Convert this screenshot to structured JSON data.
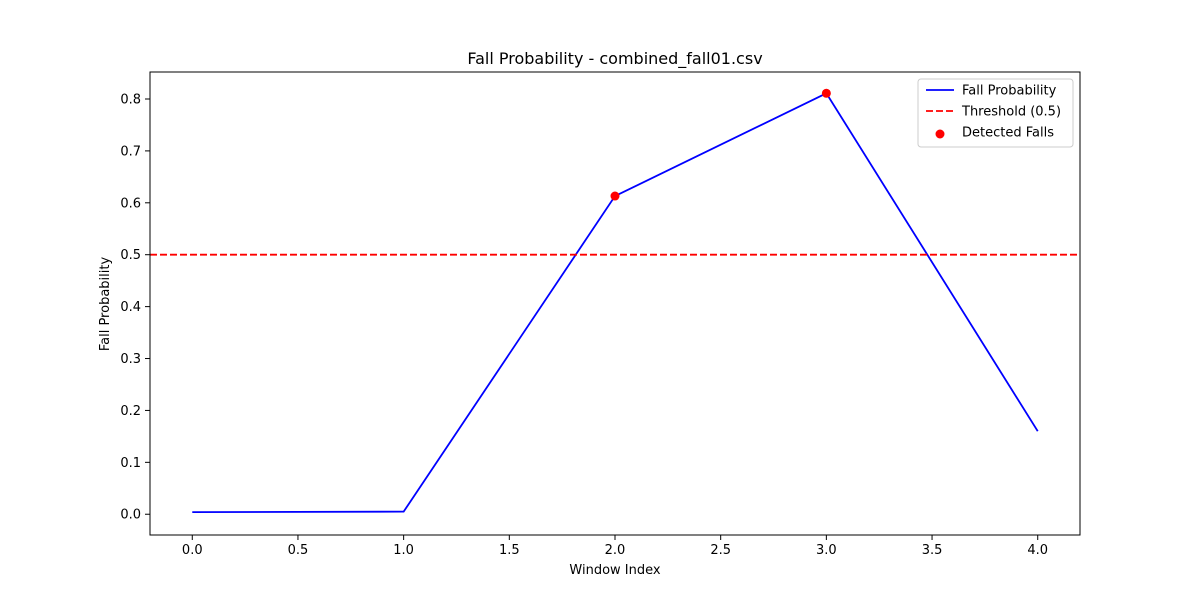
{
  "chart_data": {
    "type": "line",
    "title": "Fall Probability - combined_fall01.csv",
    "xlabel": "Window Index",
    "ylabel": "Fall Probability",
    "xlim": [
      -0.2,
      4.2
    ],
    "ylim": [
      -0.04,
      0.852
    ],
    "xticks": [
      0.0,
      0.5,
      1.0,
      1.5,
      2.0,
      2.5,
      3.0,
      3.5,
      4.0
    ],
    "xtick_labels": [
      "0.0",
      "0.5",
      "1.0",
      "1.5",
      "2.0",
      "2.5",
      "3.0",
      "3.5",
      "4.0"
    ],
    "yticks": [
      0.0,
      0.1,
      0.2,
      0.3,
      0.4,
      0.5,
      0.6,
      0.7,
      0.8
    ],
    "ytick_labels": [
      "0.0",
      "0.1",
      "0.2",
      "0.3",
      "0.4",
      "0.5",
      "0.6",
      "0.7",
      "0.8"
    ],
    "grid": false,
    "legend_position": "top-right",
    "series": [
      {
        "name": "Fall Probability",
        "kind": "line",
        "color": "#0000ff",
        "x": [
          0,
          1,
          2,
          3,
          4
        ],
        "y": [
          0.004,
          0.005,
          0.613,
          0.811,
          0.16
        ]
      },
      {
        "name": "Threshold (0.5)",
        "kind": "hline",
        "style": "dashed",
        "color": "#ff0000",
        "y": 0.5
      },
      {
        "name": "Detected Falls",
        "kind": "scatter",
        "color": "#ff0000",
        "x": [
          2,
          3
        ],
        "y": [
          0.613,
          0.811
        ]
      }
    ]
  }
}
